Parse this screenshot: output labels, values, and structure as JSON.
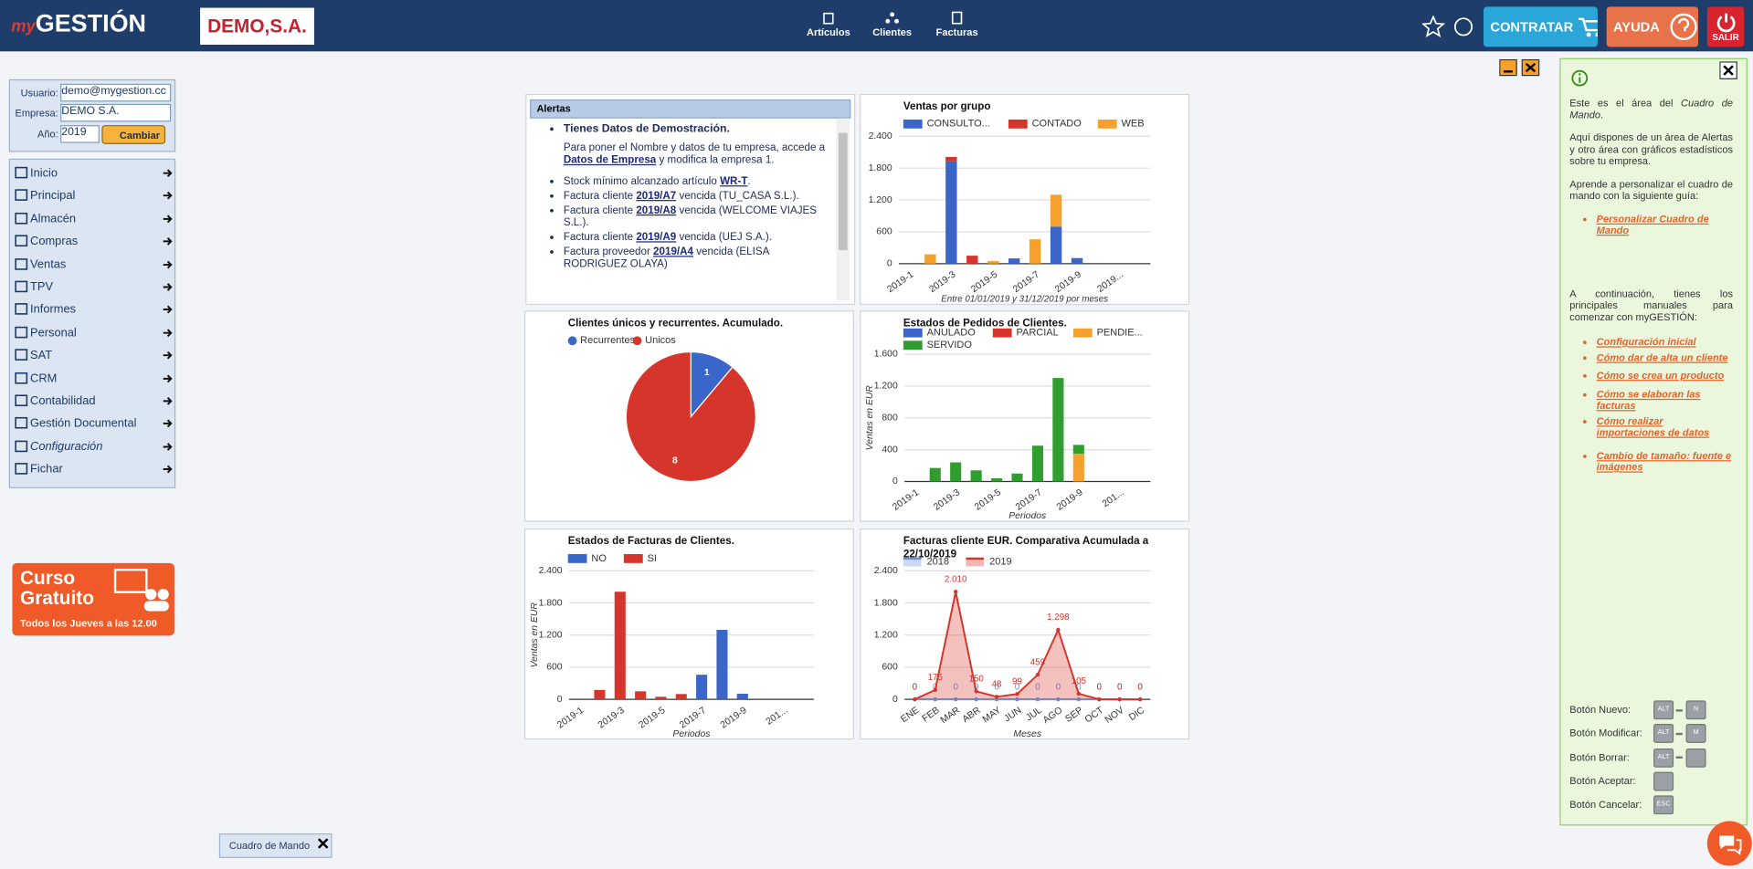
{
  "header": {
    "logo_prefix": "my",
    "logo_name": "GESTIÓN",
    "company": "DEMO,S.A.",
    "nav": [
      "Artículos",
      "Clientes",
      "Facturas"
    ],
    "contratar": "CONTRATAR",
    "ayuda": "AYUDA",
    "salir": "SALIR"
  },
  "login": {
    "user_label": "Usuario:",
    "user": "demo@mygestion.cc",
    "company_label": "Empresa:",
    "company": "DEMO S.A.",
    "year_label": "Año:",
    "year": "2019",
    "button": "Cambiar"
  },
  "menu": [
    "Inicio",
    "Principal",
    "Almacén",
    "Compras",
    "Ventas",
    "TPV",
    "Informes",
    "Personal",
    "SAT",
    "CRM",
    "Contabilidad",
    "Gestión Documental",
    "Configuración",
    "Fichar"
  ],
  "promo": {
    "title": "Curso Gratuito",
    "subtitle": "Todos los Jueves a las 12.00"
  },
  "alerts": {
    "title": "Alertas",
    "items": [
      {
        "pre": "Tienes Datos de Demostración."
      },
      {
        "pre": "Para poner el Nombre y datos de tu empresa, accede a ",
        "link": "Datos de Empresa",
        "post": " y modifica la empresa 1."
      },
      {
        "pre": "Stock mínimo alcanzado artículo ",
        "link": "WR-T",
        "post": "."
      },
      {
        "pre": "Factura cliente ",
        "link": "2019/A7",
        "post": " vencida (TU_CASA S.L.)."
      },
      {
        "pre": "Factura cliente ",
        "link": "2019/A8",
        "post": " vencida (WELCOME VIAJES S.L.)."
      },
      {
        "pre": "Factura cliente ",
        "link": "2019/A9",
        "post": " vencida (UEJ S.A.)."
      },
      {
        "pre": "Factura proveedor ",
        "link": "2019/A4",
        "post": " vencida (ELISA RODRIGUEZ OLAYA)"
      }
    ]
  },
  "charts": [
    {
      "type": "bar",
      "title": "Ventas por grupo",
      "subtitle": "Entre 01/01/2019 y 31/12/2019 por meses",
      "categories": [
        "2019-1",
        null,
        "2019-3",
        null,
        "2019-5",
        null,
        "2019-7",
        null,
        "2019-9",
        null,
        "2019...",
        null
      ],
      "series": [
        {
          "name": "CONSULTO...",
          "color": "#3a66c9",
          "values": [
            0,
            0,
            1930,
            0,
            0,
            99,
            0,
            698,
            105,
            0,
            0,
            0
          ]
        },
        {
          "name": "CONTADO",
          "color": "#d6352b",
          "values": [
            0,
            0,
            80,
            150,
            0,
            0,
            0,
            0,
            0,
            0,
            0,
            0
          ]
        },
        {
          "name": "WEB",
          "color": "#f6a02d",
          "values": [
            0,
            175,
            0,
            0,
            48,
            0,
            459,
            600,
            0,
            0,
            0,
            0
          ]
        }
      ],
      "ylim": [
        0,
        2400
      ],
      "yticks": [
        0,
        600,
        {
          "value": 1200,
          "label": "1.200"
        },
        {
          "value": 1800,
          "label": "1.800"
        },
        {
          "value": 2400,
          "label": "2.400"
        }
      ],
      "grid": true
    },
    {
      "type": "pie",
      "title": "Clientes únicos y recurrentes. Acumulado.",
      "categories": [
        "Recurrentes",
        "Unicos"
      ],
      "values": [
        1,
        8
      ],
      "colors": [
        "#3a66c9",
        "#d6352b"
      ]
    },
    {
      "type": "bar",
      "title": "Estados de Pedidos de Clientes.",
      "y_label": "Ventas en EUR",
      "x_label": "Periodos",
      "categories": [
        "2019-1",
        null,
        "2019-3",
        null,
        "2019-5",
        null,
        "2019-7",
        null,
        "2019-9",
        null,
        "201...",
        null
      ],
      "series": [
        {
          "name": "ANULADO",
          "color": "#3a66c9",
          "values": [
            0,
            0,
            0,
            0,
            0,
            0,
            0,
            0,
            0,
            0,
            0,
            0
          ]
        },
        {
          "name": "PARCIAL",
          "color": "#d6352b",
          "values": [
            0,
            0,
            0,
            0,
            0,
            0,
            0,
            0,
            0,
            0,
            0,
            0
          ]
        },
        {
          "name": "PENDIE...",
          "color": "#f6a02d",
          "values": [
            0,
            0,
            0,
            0,
            0,
            0,
            0,
            0,
            350,
            0,
            0,
            0
          ]
        },
        {
          "name": "SERVIDO",
          "color": "#2f9e2f",
          "values": [
            0,
            170,
            240,
            140,
            40,
            100,
            450,
            1300,
            110,
            0,
            0,
            0
          ]
        }
      ],
      "ylim": [
        0,
        1600
      ],
      "yticks": [
        0,
        400,
        800,
        {
          "value": 1200,
          "label": "1.200"
        },
        {
          "value": 1600,
          "label": "1.600"
        }
      ],
      "grid": true
    },
    {
      "type": "bar",
      "title": "Estados de Facturas de Clientes.",
      "y_label": "Ventas en EUR",
      "x_label": "Periodos",
      "categories": [
        "2019-1",
        null,
        "2019-3",
        null,
        "2019-5",
        null,
        "2019-7",
        null,
        "2019-9",
        null,
        "201...",
        null
      ],
      "series": [
        {
          "name": "NO",
          "color": "#3a66c9",
          "values": [
            0,
            0,
            0,
            0,
            0,
            0,
            459,
            1298,
            105,
            0,
            0,
            0
          ]
        },
        {
          "name": "SI",
          "color": "#d6352b",
          "values": [
            0,
            175,
            2010,
            150,
            48,
            99,
            0,
            0,
            0,
            0,
            0,
            0
          ]
        }
      ],
      "ylim": [
        0,
        2400
      ],
      "yticks": [
        0,
        600,
        {
          "value": 1200,
          "label": "1.200"
        },
        {
          "value": 1800,
          "label": "1.800"
        },
        {
          "value": 2400,
          "label": "2.400"
        }
      ],
      "grid": true
    },
    {
      "type": "area",
      "title": "Facturas cliente EUR. Comparativa Acumulada a 22/10/2019",
      "x_label": "Meses",
      "categories": [
        "ENE",
        "FEB",
        "MAR",
        "ABR",
        "MAY",
        "JUN",
        "JUL",
        "AGO",
        "SEP",
        "OCT",
        "NOV",
        "DIC"
      ],
      "series": [
        {
          "name": "2018",
          "color": "#6b8fd6",
          "values": [
            0,
            0,
            0,
            0,
            0,
            0,
            0,
            0,
            0,
            0,
            0,
            0
          ]
        },
        {
          "name": "2019",
          "color": "#d6352b",
          "values": [
            0,
            175,
            2010,
            150,
            48,
            99,
            459,
            1298,
            105,
            0,
            0,
            0
          ],
          "value_labels": [
            "0",
            "175",
            "2.010",
            "150",
            "48",
            "99",
            "459",
            "1.298",
            "105",
            "0",
            "0",
            "0"
          ]
        }
      ],
      "ylim": [
        0,
        2400
      ],
      "yticks": [
        0,
        600,
        {
          "value": 1200,
          "label": "1.200"
        },
        {
          "value": 1800,
          "label": "1.800"
        },
        {
          "value": 2400,
          "label": "2.400"
        }
      ],
      "grid": true
    }
  ],
  "help": {
    "intro_pre": "Este es el área del ",
    "intro_em": "Cuadro de Mando",
    "intro_post": ".",
    "p1": "Aquí dispones de un área de Alertas y otro área con gráficos estadísticos sobre tu empresa.",
    "p2": "Aprende a personalizar el cuadro de mando con la siguiente guía:",
    "guide": [
      "Personalizar Cuadro de Mando"
    ],
    "p3": "A continuación, tienes los principales manuales para comenzar con myGESTIÓN:",
    "manuals": [
      "Configuración inicial",
      "Cómo dar de alta un cliente",
      "Cómo se crea un producto",
      "Cómo se elaboran las facturas",
      "Cómo realizar importaciones de datos",
      "Cambio de tamaño: fuente e imágenes"
    ],
    "shortcuts": [
      {
        "label": "Botón Nuevo:",
        "keys": [
          "ALT",
          "N"
        ]
      },
      {
        "label": "Botón Modificar:",
        "keys": [
          "ALT",
          "M"
        ]
      },
      {
        "label": "Botón Borrar:",
        "keys": [
          "ALT"
        ]
      },
      {
        "label": "Botón Aceptar:",
        "keys": []
      },
      {
        "label": "Botón Cancelar:",
        "keys": [
          "ESC"
        ]
      }
    ]
  },
  "tab": "Cuadro de Mando"
}
